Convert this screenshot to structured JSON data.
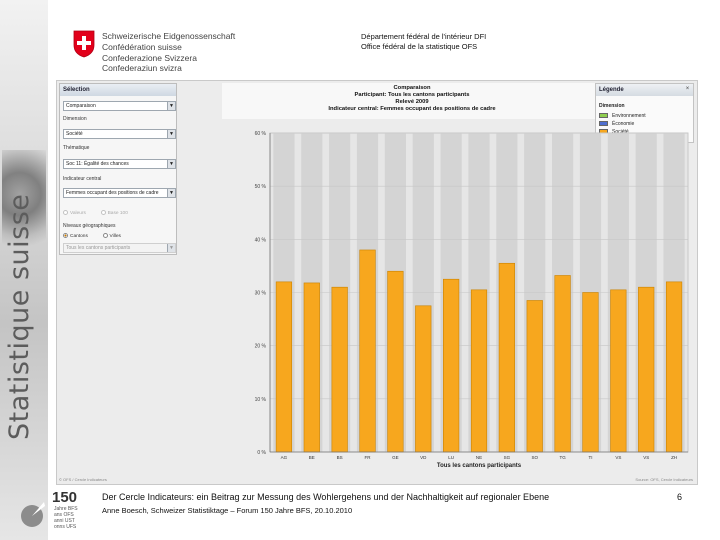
{
  "left_strip": {
    "vertical_text": "Statistique suisse"
  },
  "header": {
    "confederation_lines": [
      "Schweizerische Eidgenossenschaft",
      "Confédération suisse",
      "Confederazione Svizzera",
      "Confederaziun svizra"
    ],
    "department_lines": [
      "Département fédéral de l'intérieur DFI",
      "Office fédéral de la statistique OFS"
    ]
  },
  "selection": {
    "title": "Sélection",
    "first_select": "Comparaison",
    "dimension_label": "Dimension",
    "dimension_value": "Société",
    "thematique_label": "Thématique",
    "thematique_value": "Soc 11: Égalité des chances",
    "indicateur_label": "Indicateur central",
    "indicateur_value": "Femmes occupant des positions de cadre",
    "radio_disabled_1": "Valeurs",
    "radio_disabled_2": "Base 100",
    "niveau_label": "Niveaux géographiques",
    "radio_cantons": "Cantons",
    "radio_villes": "Villes",
    "participants_select": "Tous les cantons participants"
  },
  "chart_titles": {
    "lines": [
      "Comparaison",
      "Participant: Tous les cantons participants",
      "Relevé 2009",
      "Indicateur central: Femmes occupant des positions de cadre"
    ]
  },
  "legend": {
    "title": "Légende",
    "close_glyph": "×",
    "heading": "Dimension",
    "items": [
      {
        "label": "Environnement",
        "color": "#8fce4f"
      },
      {
        "label": "Économie",
        "color": "#4f6fd0"
      },
      {
        "label": "Société",
        "color": "#f7a71e"
      }
    ]
  },
  "chart_data": {
    "type": "bar",
    "categories": [
      "AG",
      "BE",
      "BS",
      "FR",
      "GE",
      "VD",
      "LU",
      "NE",
      "SG",
      "SO",
      "TG",
      "TI",
      "VS",
      "VS",
      "ZH"
    ],
    "values": [
      32,
      31.8,
      31,
      38,
      34,
      27.5,
      32.5,
      30.5,
      35.5,
      28.5,
      33.2,
      30,
      30.5,
      31,
      32
    ],
    "xlabel": "Tous les cantons participants",
    "ylabel": "",
    "y_ticks": [
      "0 %",
      "10 %",
      "20 %",
      "30 %",
      "40 %",
      "50 %",
      "60 %"
    ],
    "ylim": [
      0,
      60
    ],
    "bar_color": "#f7a71e",
    "grid": true
  },
  "app_footer": {
    "left": "© OFS / Cercle Indicateurs",
    "right": "Source: OFS, Cercle Indicateurs"
  },
  "footer": {
    "logo_number": "150",
    "logo_lines": [
      "Jahre BFS",
      "ans OFS",
      "anni UST",
      "onns UFS"
    ],
    "title": "Der Cercle Indicateurs: ein Beitrag zur Messung des Wohlergehens und der Nachhaltigkeit auf regionaler Ebene",
    "subtitle": "Anne Boesch, Schweizer Statistiktage – Forum 150 Jahre BFS, 20.10.2010",
    "page_number": "6"
  }
}
